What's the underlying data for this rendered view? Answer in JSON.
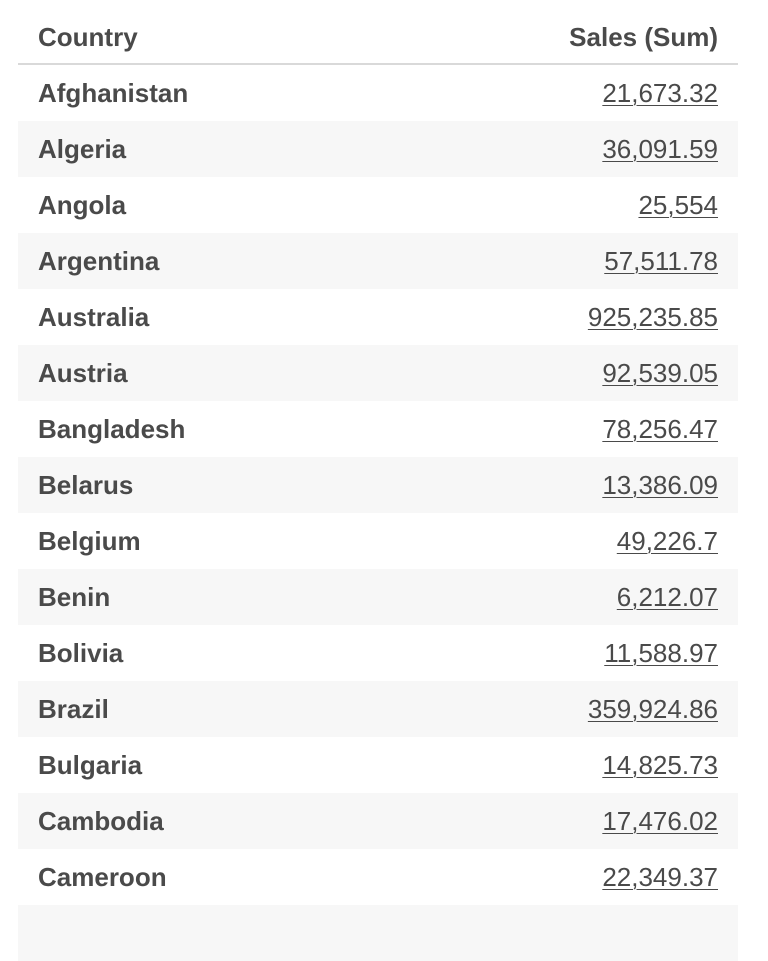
{
  "table": {
    "headers": {
      "country": "Country",
      "sales": "Sales (Sum)"
    },
    "rows": [
      {
        "country": "Afghanistan",
        "sales": "21,673.32"
      },
      {
        "country": "Algeria",
        "sales": "36,091.59"
      },
      {
        "country": "Angola",
        "sales": "25,554"
      },
      {
        "country": "Argentina",
        "sales": "57,511.78"
      },
      {
        "country": "Australia",
        "sales": "925,235.85"
      },
      {
        "country": "Austria",
        "sales": "92,539.05"
      },
      {
        "country": "Bangladesh",
        "sales": "78,256.47"
      },
      {
        "country": "Belarus",
        "sales": "13,386.09"
      },
      {
        "country": "Belgium",
        "sales": "49,226.7"
      },
      {
        "country": "Benin",
        "sales": "6,212.07"
      },
      {
        "country": "Bolivia",
        "sales": "11,588.97"
      },
      {
        "country": "Brazil",
        "sales": "359,924.86"
      },
      {
        "country": "Bulgaria",
        "sales": "14,825.73"
      },
      {
        "country": "Cambodia",
        "sales": "17,476.02"
      },
      {
        "country": "Cameroon",
        "sales": "22,349.37"
      },
      {
        "country": "",
        "sales": ""
      }
    ]
  }
}
